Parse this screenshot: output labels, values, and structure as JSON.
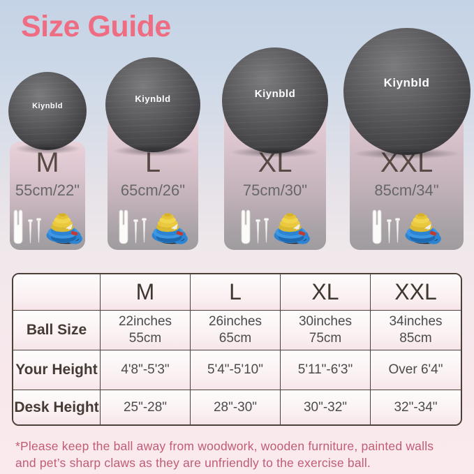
{
  "title": "Size Guide",
  "brand": "Kiynbld",
  "cards": [
    {
      "size": "M",
      "dims": "55cm/22\""
    },
    {
      "size": "L",
      "dims": "65cm/26\""
    },
    {
      "size": "XL",
      "dims": "75cm/30\""
    },
    {
      "size": "XXL",
      "dims": "85cm/34\""
    }
  ],
  "table": {
    "headers": [
      "",
      "M",
      "L",
      "XL",
      "XXL"
    ],
    "rows": [
      {
        "label": "Ball Size",
        "cells": [
          "22inches\n55cm",
          "26inches\n65cm",
          "30inches\n75cm",
          "34inches\n85cm"
        ]
      },
      {
        "label": "Your Height",
        "cells": [
          "4'8\"-5'3\"",
          "5'4\"-5'10\"",
          "5'11\"-6'3\"",
          "Over 6'4\""
        ]
      },
      {
        "label": "Desk Height",
        "cells": [
          "25\"-28\"",
          "28\"-30\"",
          "30\"-32\"",
          "32\"-34\""
        ]
      }
    ]
  },
  "footnote": "*Please keep the ball away from woodwork, wooden furniture, painted walls\nand pet’s sharp claws as they are unfriendly to the exercise ball.",
  "colors": {
    "title_pink": "#ee6d82",
    "ball_dark": "#4a4a4d",
    "card_top_pink": "#e9d2da",
    "card_bottom_gray": "#9f9c9f",
    "table_border": "#4b4139",
    "footnote_rose": "#c15c75",
    "pump_yellow": "#eac93e",
    "pump_blue": "#2c84d2"
  }
}
